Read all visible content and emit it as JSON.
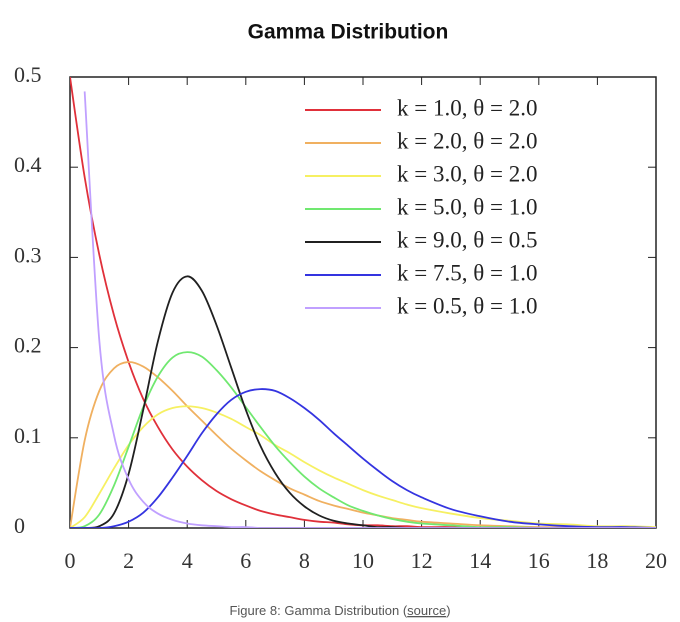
{
  "chart_data": {
    "type": "line",
    "title": "Gamma Distribution",
    "x": [
      0,
      0.5,
      1,
      1.5,
      2,
      2.5,
      3,
      3.5,
      4,
      4.5,
      5,
      5.5,
      6,
      6.5,
      7,
      7.5,
      8,
      8.5,
      9,
      9.5,
      10,
      10.5,
      11,
      11.5,
      12,
      13,
      14,
      15,
      16,
      17,
      18,
      19,
      20
    ],
    "series": [
      {
        "name": "k = 1.0, θ = 2.0",
        "color": "#e0303a",
        "values": [
          0.5,
          0.389,
          0.303,
          0.236,
          0.184,
          0.143,
          0.112,
          0.087,
          0.068,
          0.053,
          0.041,
          0.032,
          0.025,
          0.019,
          0.015,
          0.012,
          0.009,
          0.007,
          0.006,
          0.004,
          0.003,
          0.003,
          0.002,
          0.002,
          0.001,
          0.001,
          0,
          0,
          0,
          0,
          0,
          0,
          0
        ]
      },
      {
        "name": "k = 2.0, θ = 2.0",
        "color": "#f0b060",
        "values": [
          0,
          0.097,
          0.152,
          0.177,
          0.184,
          0.179,
          0.167,
          0.152,
          0.135,
          0.119,
          0.103,
          0.088,
          0.075,
          0.063,
          0.053,
          0.044,
          0.037,
          0.03,
          0.025,
          0.021,
          0.017,
          0.014,
          0.011,
          0.009,
          0.007,
          0.005,
          0.003,
          0.002,
          0.001,
          0.001,
          0.001,
          0,
          0
        ]
      },
      {
        "name": "k = 3.0, θ = 2.0",
        "color": "#f6f062",
        "values": [
          0,
          0.012,
          0.038,
          0.066,
          0.092,
          0.112,
          0.126,
          0.133,
          0.135,
          0.133,
          0.128,
          0.121,
          0.112,
          0.103,
          0.092,
          0.083,
          0.073,
          0.064,
          0.056,
          0.049,
          0.042,
          0.036,
          0.031,
          0.026,
          0.022,
          0.016,
          0.011,
          0.008,
          0.005,
          0.004,
          0.002,
          0.002,
          0.001
        ]
      },
      {
        "name": "k = 5.0, θ = 1.0",
        "color": "#70e870",
        "values": [
          0,
          0.002,
          0.015,
          0.047,
          0.09,
          0.134,
          0.168,
          0.189,
          0.195,
          0.19,
          0.175,
          0.156,
          0.134,
          0.112,
          0.091,
          0.073,
          0.057,
          0.044,
          0.034,
          0.025,
          0.019,
          0.014,
          0.01,
          0.007,
          0.005,
          0.003,
          0.001,
          0.001,
          0,
          0,
          0,
          0,
          0
        ]
      },
      {
        "name": "k = 9.0, θ = 0.5",
        "color": "#202020",
        "values": [
          0,
          0,
          0.002,
          0.016,
          0.06,
          0.131,
          0.207,
          0.261,
          0.279,
          0.263,
          0.225,
          0.178,
          0.131,
          0.091,
          0.061,
          0.039,
          0.024,
          0.014,
          0.008,
          0.005,
          0.003,
          0.001,
          0.001,
          0,
          0,
          0,
          0,
          0,
          0,
          0,
          0,
          0,
          0
        ]
      },
      {
        "name": "k = 7.5, θ = 1.0",
        "color": "#3434e0",
        "values": [
          0,
          0,
          0,
          0.002,
          0.007,
          0.017,
          0.034,
          0.056,
          0.08,
          0.105,
          0.126,
          0.142,
          0.151,
          0.154,
          0.152,
          0.144,
          0.133,
          0.12,
          0.105,
          0.091,
          0.077,
          0.064,
          0.052,
          0.042,
          0.034,
          0.021,
          0.013,
          0.007,
          0.004,
          0.002,
          0.001,
          0.001,
          0
        ]
      },
      {
        "name": "k = 0.5, θ = 1.0",
        "color": "#c0a0ff",
        "values": [
          null,
          0.484,
          0.208,
          0.103,
          0.054,
          0.029,
          0.016,
          0.009,
          0.005,
          0.003,
          0.002,
          0.001,
          0.001,
          0,
          0,
          0,
          0,
          0,
          0,
          0,
          0,
          0,
          0,
          0,
          0,
          0,
          0,
          0,
          0,
          0,
          0,
          0,
          0
        ]
      }
    ],
    "xlim": [
      0,
      20
    ],
    "xticks": [
      0,
      2,
      4,
      6,
      8,
      10,
      12,
      14,
      16,
      18,
      20
    ],
    "ylim": [
      0,
      0.5
    ],
    "yticks": [
      0,
      0.1,
      0.2,
      0.3,
      0.4,
      0.5
    ],
    "legend": "upper right"
  },
  "caption": {
    "text": "Figure 8: Gamma Distribution (",
    "link": "source",
    "end": ")"
  }
}
